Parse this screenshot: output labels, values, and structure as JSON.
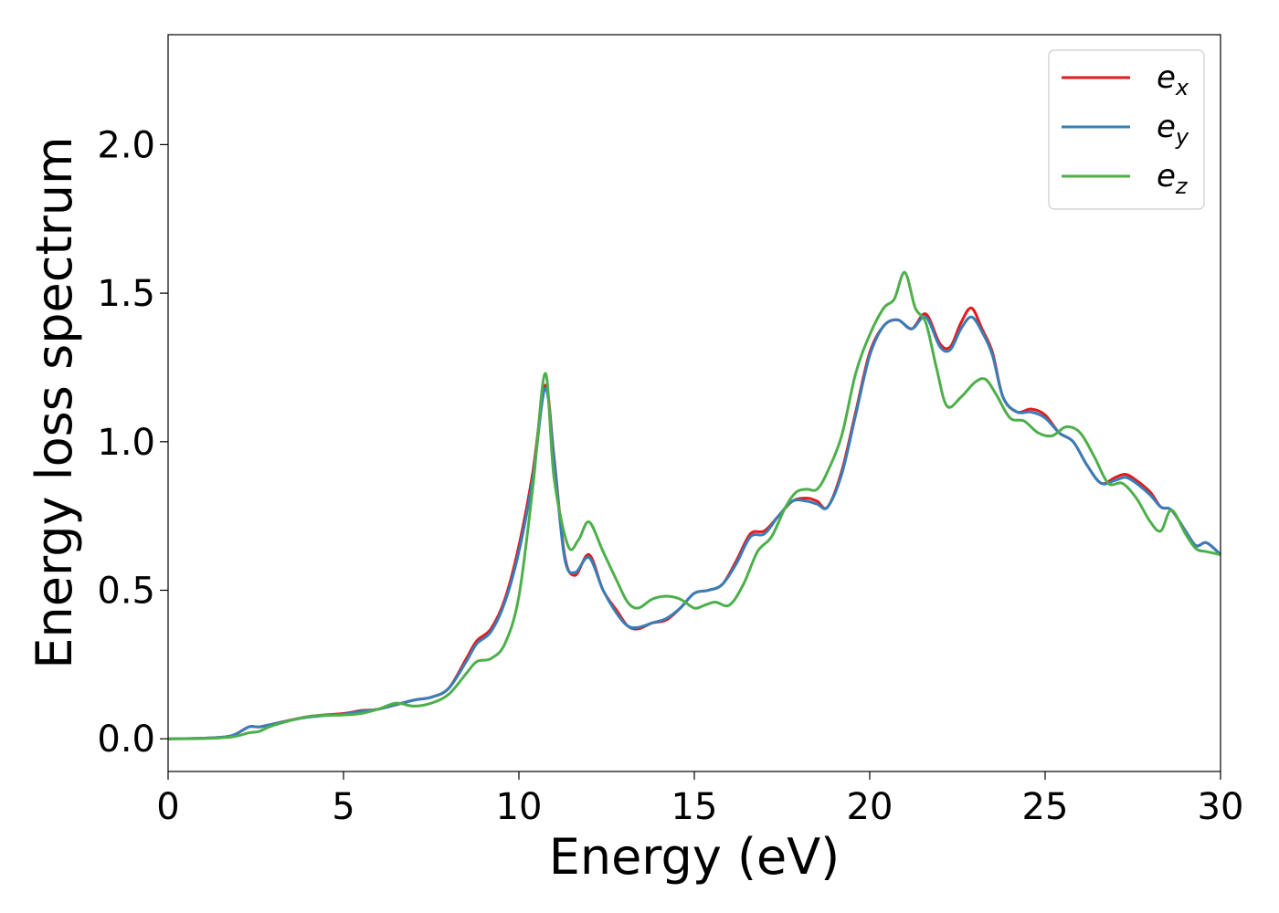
{
  "chart_data": {
    "type": "line",
    "title": "",
    "xlabel": "Energy (eV)",
    "ylabel": "Energy loss spectrum",
    "xlim": [
      0,
      30
    ],
    "ylim": [
      -0.11,
      2.37
    ],
    "xticks": [
      0,
      5,
      10,
      15,
      20,
      25,
      30
    ],
    "xtick_labels": [
      "0",
      "5",
      "10",
      "15",
      "20",
      "25",
      "30"
    ],
    "yticks": [
      0.0,
      0.5,
      1.0,
      1.5,
      2.0
    ],
    "ytick_labels": [
      "0.0",
      "0.5",
      "1.0",
      "1.5",
      "2.0"
    ],
    "grid": false,
    "legend_position": "top-right",
    "series": [
      {
        "name": "e_x",
        "legend_base": "e",
        "legend_sub": "x",
        "color": "#e41a1c",
        "x": [
          0,
          1,
          1.8,
          2.3,
          2.6,
          3,
          4,
          5,
          5.5,
          6,
          7,
          7.5,
          8,
          8.5,
          8.8,
          9.2,
          9.6,
          10,
          10.4,
          10.75,
          11.0,
          11.3,
          11.6,
          12.0,
          12.4,
          12.8,
          13.1,
          13.4,
          13.8,
          14.2,
          14.6,
          15.0,
          15.4,
          15.8,
          16.2,
          16.6,
          17.0,
          17.4,
          17.8,
          18.2,
          18.5,
          18.8,
          19.2,
          19.6,
          20.0,
          20.4,
          20.8,
          21.2,
          21.6,
          22.0,
          22.3,
          22.6,
          22.9,
          23.2,
          23.5,
          23.8,
          24.2,
          24.6,
          25.0,
          25.4,
          25.8,
          26.2,
          26.6,
          27.0,
          27.3,
          27.6,
          28.0,
          28.3,
          28.6,
          29.0,
          29.3,
          29.6,
          30.0
        ],
        "values": [
          0.0,
          0.002,
          0.01,
          0.04,
          0.04,
          0.05,
          0.075,
          0.085,
          0.095,
          0.1,
          0.13,
          0.14,
          0.17,
          0.27,
          0.33,
          0.37,
          0.47,
          0.65,
          0.9,
          1.19,
          0.95,
          0.62,
          0.55,
          0.62,
          0.5,
          0.43,
          0.38,
          0.37,
          0.39,
          0.4,
          0.44,
          0.49,
          0.5,
          0.52,
          0.6,
          0.69,
          0.7,
          0.75,
          0.8,
          0.81,
          0.8,
          0.78,
          0.9,
          1.1,
          1.3,
          1.39,
          1.41,
          1.38,
          1.43,
          1.33,
          1.32,
          1.4,
          1.45,
          1.38,
          1.3,
          1.15,
          1.1,
          1.11,
          1.09,
          1.03,
          1.0,
          0.92,
          0.86,
          0.88,
          0.89,
          0.87,
          0.83,
          0.78,
          0.77,
          0.7,
          0.65,
          0.66,
          0.62
        ]
      },
      {
        "name": "e_y",
        "legend_base": "e",
        "legend_sub": "y",
        "color": "#377eb8",
        "x": [
          0,
          1,
          1.8,
          2.3,
          2.6,
          3,
          4,
          5,
          5.5,
          6,
          7,
          7.5,
          8,
          8.5,
          8.8,
          9.2,
          9.6,
          10,
          10.4,
          10.75,
          11.0,
          11.3,
          11.6,
          12.0,
          12.4,
          12.8,
          13.1,
          13.4,
          13.8,
          14.2,
          14.6,
          15.0,
          15.4,
          15.8,
          16.2,
          16.6,
          17.0,
          17.4,
          17.8,
          18.2,
          18.5,
          18.8,
          19.2,
          19.6,
          20.0,
          20.4,
          20.8,
          21.2,
          21.6,
          22.0,
          22.3,
          22.6,
          22.9,
          23.2,
          23.5,
          23.8,
          24.2,
          24.6,
          25.0,
          25.4,
          25.8,
          26.2,
          26.6,
          27.0,
          27.3,
          27.6,
          28.0,
          28.3,
          28.6,
          29.0,
          29.3,
          29.6,
          30.0
        ],
        "values": [
          0.0,
          0.002,
          0.01,
          0.04,
          0.04,
          0.05,
          0.073,
          0.083,
          0.093,
          0.1,
          0.13,
          0.14,
          0.17,
          0.26,
          0.32,
          0.36,
          0.46,
          0.63,
          0.88,
          1.18,
          0.94,
          0.61,
          0.56,
          0.61,
          0.5,
          0.42,
          0.38,
          0.375,
          0.39,
          0.405,
          0.44,
          0.49,
          0.5,
          0.52,
          0.59,
          0.68,
          0.69,
          0.75,
          0.8,
          0.8,
          0.79,
          0.78,
          0.89,
          1.09,
          1.29,
          1.39,
          1.41,
          1.38,
          1.42,
          1.32,
          1.31,
          1.38,
          1.42,
          1.37,
          1.29,
          1.15,
          1.1,
          1.1,
          1.08,
          1.03,
          1.0,
          0.92,
          0.86,
          0.87,
          0.88,
          0.86,
          0.82,
          0.78,
          0.77,
          0.7,
          0.65,
          0.66,
          0.62
        ]
      },
      {
        "name": "e_z",
        "legend_base": "e",
        "legend_sub": "z",
        "color": "#4daf4a",
        "x": [
          0,
          1,
          1.8,
          2.3,
          2.6,
          3,
          4,
          5,
          5.5,
          6,
          6.5,
          7,
          7.5,
          8,
          8.5,
          8.8,
          9.2,
          9.6,
          10,
          10.4,
          10.75,
          11.0,
          11.4,
          11.7,
          12.0,
          12.4,
          12.8,
          13.1,
          13.4,
          13.8,
          14.2,
          14.6,
          15.0,
          15.3,
          15.6,
          16.0,
          16.4,
          16.8,
          17.2,
          17.6,
          17.9,
          18.2,
          18.5,
          18.8,
          19.2,
          19.6,
          20.0,
          20.4,
          20.7,
          21.0,
          21.3,
          21.6,
          21.9,
          22.2,
          22.6,
          23.0,
          23.3,
          23.6,
          24.0,
          24.4,
          24.8,
          25.2,
          25.6,
          26.0,
          26.4,
          26.8,
          27.2,
          27.6,
          28.0,
          28.3,
          28.6,
          29.0,
          29.3,
          29.6,
          30.0
        ],
        "values": [
          0.0,
          0.001,
          0.006,
          0.02,
          0.025,
          0.045,
          0.075,
          0.08,
          0.085,
          0.1,
          0.12,
          0.11,
          0.12,
          0.15,
          0.22,
          0.26,
          0.27,
          0.32,
          0.48,
          0.85,
          1.23,
          0.88,
          0.65,
          0.67,
          0.73,
          0.63,
          0.53,
          0.46,
          0.44,
          0.47,
          0.48,
          0.47,
          0.44,
          0.45,
          0.46,
          0.45,
          0.52,
          0.63,
          0.68,
          0.78,
          0.83,
          0.84,
          0.84,
          0.9,
          1.02,
          1.23,
          1.36,
          1.45,
          1.48,
          1.57,
          1.45,
          1.4,
          1.25,
          1.12,
          1.15,
          1.2,
          1.21,
          1.16,
          1.08,
          1.07,
          1.03,
          1.02,
          1.05,
          1.03,
          0.95,
          0.86,
          0.86,
          0.81,
          0.73,
          0.7,
          0.77,
          0.69,
          0.64,
          0.63,
          0.62
        ]
      }
    ]
  }
}
